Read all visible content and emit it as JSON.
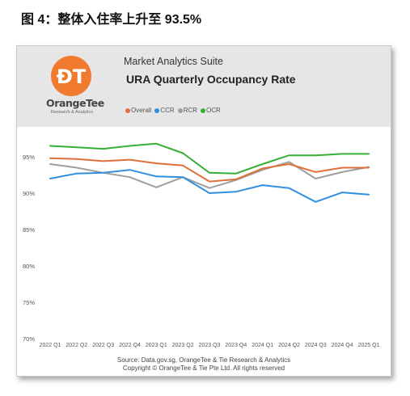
{
  "figure_caption": "图 4：整体入住率上升至 93.5%",
  "header": {
    "logo": {
      "name": "OrangeTee",
      "tagline": "Research & Analytics",
      "icon": "orangetee-logo-icon",
      "color": "#f07a2e"
    },
    "suite_title": "Market Analytics Suite"
  },
  "source_lines": [
    "Source: Data.gov.sg, OrangeTee & Tie Research & Analytics",
    "Copyright © OrangeTee & Tie Pte Ltd. All rights reserved"
  ],
  "chart_data": {
    "type": "line",
    "title": "URA Quarterly Occupancy Rate",
    "xlabel": "",
    "ylabel": "",
    "legend_position": "top-left",
    "grid": "none",
    "categories": [
      "2022 Q1",
      "2022 Q2",
      "2022 Q3",
      "2022 Q4",
      "2023 Q1",
      "2023 Q2",
      "2023 Q3",
      "2023 Q4",
      "2024 Q1",
      "2024 Q2",
      "2024 Q3",
      "2024 Q4",
      "2025 Q1"
    ],
    "ylim": [
      70,
      98
    ],
    "yticks": [
      70,
      75,
      80,
      85,
      90,
      95
    ],
    "ytick_labels": [
      "70%",
      "75%",
      "80%",
      "85%",
      "90%",
      "95%"
    ],
    "series": [
      {
        "name": "Overall",
        "color": "#e0703a",
        "values": [
          94.8,
          94.7,
          94.4,
          94.6,
          94.1,
          93.8,
          91.6,
          91.9,
          93.4,
          94.0,
          92.9,
          93.5,
          93.5
        ]
      },
      {
        "name": "CCR",
        "color": "#2f8fe0",
        "values": [
          92.0,
          92.7,
          92.8,
          93.2,
          92.3,
          92.2,
          90.0,
          90.2,
          91.1,
          90.7,
          88.8,
          90.1,
          89.8
        ]
      },
      {
        "name": "RCR",
        "color": "#9e9e9e",
        "values": [
          94.0,
          93.5,
          92.8,
          92.2,
          90.8,
          92.2,
          90.7,
          91.8,
          93.2,
          94.3,
          92.0,
          92.9,
          93.6
        ]
      },
      {
        "name": "OCR",
        "color": "#35b035",
        "values": [
          96.5,
          96.3,
          96.1,
          96.5,
          96.8,
          95.5,
          92.8,
          92.7,
          94.0,
          95.2,
          95.2,
          95.4,
          95.4
        ]
      }
    ]
  }
}
